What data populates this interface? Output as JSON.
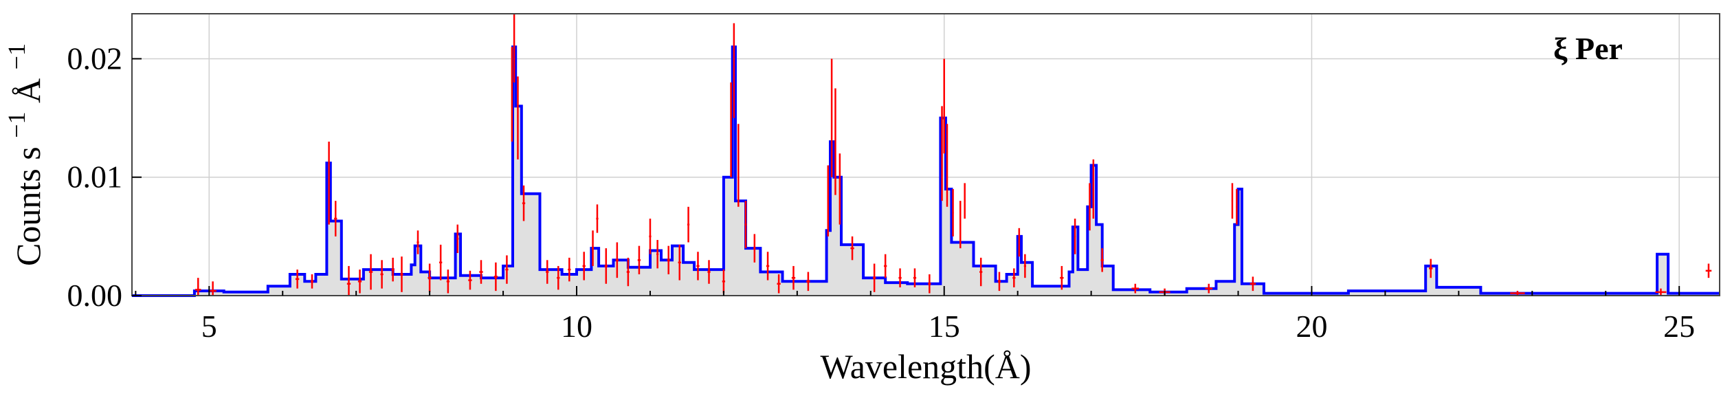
{
  "chart_data": {
    "type": "line",
    "title": "",
    "annotation": "ξ Per",
    "xlabel": "Wavelength(Å)",
    "ylabel_parts": {
      "base": "Counts s",
      "exp1": "−1",
      "mid": " Å",
      "exp2": "−1"
    },
    "xlim": [
      3.95,
      25.55
    ],
    "ylim": [
      0.0,
      0.0238
    ],
    "x_ticks": [
      5,
      10,
      15,
      20,
      25
    ],
    "x_tick_labels": [
      "5",
      "10",
      "15",
      "20",
      "25"
    ],
    "y_ticks": [
      0.0,
      0.01,
      0.02
    ],
    "y_tick_labels": [
      "0.00",
      "0.01",
      "0.02"
    ],
    "grid": true,
    "colors": {
      "model": "#0000ff",
      "data": "#ff0000",
      "fill": "#e0e0e0",
      "grid": "#d0d0d0"
    },
    "series": [
      {
        "name": "model",
        "style": "step",
        "points": [
          [
            3.95,
            0.0
          ],
          [
            4.8,
            0.0
          ],
          [
            4.8,
            0.0004
          ],
          [
            5.2,
            0.0004
          ],
          [
            5.2,
            0.0003
          ],
          [
            5.8,
            0.0003
          ],
          [
            5.8,
            0.0008
          ],
          [
            6.1,
            0.0008
          ],
          [
            6.1,
            0.0018
          ],
          [
            6.3,
            0.0018
          ],
          [
            6.3,
            0.0012
          ],
          [
            6.45,
            0.0012
          ],
          [
            6.45,
            0.0018
          ],
          [
            6.6,
            0.0018
          ],
          [
            6.6,
            0.0112
          ],
          [
            6.65,
            0.0112
          ],
          [
            6.65,
            0.0063
          ],
          [
            6.8,
            0.0063
          ],
          [
            6.8,
            0.0014
          ],
          [
            7.1,
            0.0014
          ],
          [
            7.1,
            0.0022
          ],
          [
            7.5,
            0.0022
          ],
          [
            7.5,
            0.0018
          ],
          [
            7.75,
            0.0018
          ],
          [
            7.75,
            0.0026
          ],
          [
            7.8,
            0.0026
          ],
          [
            7.8,
            0.0042
          ],
          [
            7.88,
            0.0042
          ],
          [
            7.88,
            0.002
          ],
          [
            8.0,
            0.002
          ],
          [
            8.0,
            0.0015
          ],
          [
            8.35,
            0.0015
          ],
          [
            8.35,
            0.0052
          ],
          [
            8.42,
            0.0052
          ],
          [
            8.42,
            0.0017
          ],
          [
            8.7,
            0.0017
          ],
          [
            8.7,
            0.0015
          ],
          [
            9.0,
            0.0015
          ],
          [
            9.0,
            0.0025
          ],
          [
            9.13,
            0.0025
          ],
          [
            9.13,
            0.021
          ],
          [
            9.17,
            0.021
          ],
          [
            9.17,
            0.016
          ],
          [
            9.25,
            0.016
          ],
          [
            9.25,
            0.0086
          ],
          [
            9.5,
            0.0086
          ],
          [
            9.5,
            0.0022
          ],
          [
            9.8,
            0.0022
          ],
          [
            9.8,
            0.0018
          ],
          [
            10.0,
            0.0018
          ],
          [
            10.0,
            0.0022
          ],
          [
            10.2,
            0.0022
          ],
          [
            10.2,
            0.004
          ],
          [
            10.3,
            0.004
          ],
          [
            10.3,
            0.0025
          ],
          [
            10.5,
            0.0025
          ],
          [
            10.5,
            0.003
          ],
          [
            10.7,
            0.003
          ],
          [
            10.7,
            0.0024
          ],
          [
            11.0,
            0.0024
          ],
          [
            11.0,
            0.0038
          ],
          [
            11.15,
            0.0038
          ],
          [
            11.15,
            0.003
          ],
          [
            11.3,
            0.003
          ],
          [
            11.3,
            0.0042
          ],
          [
            11.45,
            0.0042
          ],
          [
            11.45,
            0.0028
          ],
          [
            11.6,
            0.0028
          ],
          [
            11.6,
            0.0022
          ],
          [
            12.0,
            0.0022
          ],
          [
            12.0,
            0.01
          ],
          [
            12.12,
            0.01
          ],
          [
            12.12,
            0.021
          ],
          [
            12.16,
            0.021
          ],
          [
            12.16,
            0.008
          ],
          [
            12.3,
            0.008
          ],
          [
            12.3,
            0.004
          ],
          [
            12.5,
            0.004
          ],
          [
            12.5,
            0.002
          ],
          [
            12.8,
            0.002
          ],
          [
            12.8,
            0.0012
          ],
          [
            13.4,
            0.0012
          ],
          [
            13.4,
            0.0055
          ],
          [
            13.45,
            0.0055
          ],
          [
            13.45,
            0.013
          ],
          [
            13.5,
            0.013
          ],
          [
            13.5,
            0.01
          ],
          [
            13.6,
            0.01
          ],
          [
            13.6,
            0.0043
          ],
          [
            13.9,
            0.0043
          ],
          [
            13.9,
            0.0015
          ],
          [
            14.2,
            0.0015
          ],
          [
            14.2,
            0.0011
          ],
          [
            14.5,
            0.0011
          ],
          [
            14.5,
            0.001
          ],
          [
            14.95,
            0.001
          ],
          [
            14.95,
            0.015
          ],
          [
            15.02,
            0.015
          ],
          [
            15.02,
            0.009
          ],
          [
            15.1,
            0.009
          ],
          [
            15.1,
            0.0045
          ],
          [
            15.4,
            0.0045
          ],
          [
            15.4,
            0.0025
          ],
          [
            15.7,
            0.0025
          ],
          [
            15.7,
            0.0012
          ],
          [
            15.85,
            0.0012
          ],
          [
            15.85,
            0.0018
          ],
          [
            16.0,
            0.0018
          ],
          [
            16.0,
            0.005
          ],
          [
            16.05,
            0.005
          ],
          [
            16.05,
            0.0028
          ],
          [
            16.2,
            0.0028
          ],
          [
            16.2,
            0.0008
          ],
          [
            16.7,
            0.0008
          ],
          [
            16.7,
            0.002
          ],
          [
            16.75,
            0.002
          ],
          [
            16.75,
            0.0058
          ],
          [
            16.82,
            0.0058
          ],
          [
            16.82,
            0.0022
          ],
          [
            16.95,
            0.0022
          ],
          [
            16.95,
            0.0075
          ],
          [
            17.0,
            0.0075
          ],
          [
            17.0,
            0.011
          ],
          [
            17.07,
            0.011
          ],
          [
            17.07,
            0.006
          ],
          [
            17.15,
            0.006
          ],
          [
            17.15,
            0.0025
          ],
          [
            17.3,
            0.0025
          ],
          [
            17.3,
            0.0005
          ],
          [
            17.8,
            0.0005
          ],
          [
            17.8,
            0.0003
          ],
          [
            18.3,
            0.0003
          ],
          [
            18.3,
            0.0006
          ],
          [
            18.7,
            0.0006
          ],
          [
            18.7,
            0.0012
          ],
          [
            18.95,
            0.0012
          ],
          [
            18.95,
            0.006
          ],
          [
            19.0,
            0.006
          ],
          [
            19.0,
            0.009
          ],
          [
            19.05,
            0.009
          ],
          [
            19.05,
            0.001
          ],
          [
            19.35,
            0.001
          ],
          [
            19.35,
            0.0002
          ],
          [
            20.5,
            0.0002
          ],
          [
            20.5,
            0.0004
          ],
          [
            21.55,
            0.0004
          ],
          [
            21.55,
            0.0025
          ],
          [
            21.7,
            0.0025
          ],
          [
            21.7,
            0.0007
          ],
          [
            22.3,
            0.0007
          ],
          [
            22.3,
            0.0002
          ],
          [
            24.7,
            0.0002
          ],
          [
            24.7,
            0.0035
          ],
          [
            24.85,
            0.0035
          ],
          [
            24.85,
            0.0002
          ],
          [
            25.55,
            0.0002
          ]
        ]
      },
      {
        "name": "data",
        "style": "errorbar",
        "points": [
          [
            4.85,
            0.0005,
            0.001,
            0.08
          ],
          [
            5.05,
            0.0004,
            0.0008,
            0.1
          ],
          [
            6.2,
            0.0014,
            0.0008,
            0.05
          ],
          [
            6.4,
            0.0012,
            0.0006,
            0.04
          ],
          [
            6.63,
            0.0095,
            0.0035,
            0.02
          ],
          [
            6.72,
            0.0065,
            0.0015,
            0.04
          ],
          [
            6.9,
            0.001,
            0.0015,
            0.05
          ],
          [
            7.05,
            0.0012,
            0.001,
            0.05
          ],
          [
            7.2,
            0.002,
            0.0015,
            0.05
          ],
          [
            7.35,
            0.0018,
            0.0012,
            0.04
          ],
          [
            7.5,
            0.0022,
            0.001,
            0.04
          ],
          [
            7.62,
            0.0018,
            0.0015,
            0.04
          ],
          [
            7.84,
            0.0045,
            0.001,
            0.03
          ],
          [
            8.0,
            0.0015,
            0.0012,
            0.05
          ],
          [
            8.15,
            0.0028,
            0.0015,
            0.04
          ],
          [
            8.25,
            0.0012,
            0.001,
            0.04
          ],
          [
            8.38,
            0.0048,
            0.0012,
            0.03
          ],
          [
            8.55,
            0.0013,
            0.0008,
            0.05
          ],
          [
            8.7,
            0.002,
            0.001,
            0.05
          ],
          [
            8.9,
            0.0016,
            0.0012,
            0.05
          ],
          [
            9.05,
            0.0022,
            0.0012,
            0.04
          ],
          [
            9.12,
            0.017,
            0.004,
            0.015
          ],
          [
            9.15,
            0.021,
            0.003,
            0.015
          ],
          [
            9.2,
            0.015,
            0.0035,
            0.015
          ],
          [
            9.28,
            0.0078,
            0.0015,
            0.04
          ],
          [
            9.6,
            0.002,
            0.001,
            0.04
          ],
          [
            9.75,
            0.0015,
            0.001,
            0.04
          ],
          [
            9.9,
            0.0022,
            0.001,
            0.04
          ],
          [
            10.1,
            0.0025,
            0.0012,
            0.04
          ],
          [
            10.22,
            0.004,
            0.0015,
            0.03
          ],
          [
            10.28,
            0.0065,
            0.0012,
            0.03
          ],
          [
            10.4,
            0.0025,
            0.0015,
            0.04
          ],
          [
            10.55,
            0.003,
            0.0015,
            0.04
          ],
          [
            10.7,
            0.002,
            0.0012,
            0.04
          ],
          [
            10.85,
            0.003,
            0.0012,
            0.04
          ],
          [
            11.0,
            0.005,
            0.0015,
            0.03
          ],
          [
            11.1,
            0.0035,
            0.0012,
            0.03
          ],
          [
            11.25,
            0.003,
            0.0012,
            0.04
          ],
          [
            11.4,
            0.0028,
            0.0015,
            0.04
          ],
          [
            11.52,
            0.006,
            0.0015,
            0.03
          ],
          [
            11.65,
            0.0025,
            0.0012,
            0.04
          ],
          [
            11.8,
            0.002,
            0.001,
            0.04
          ],
          [
            12.0,
            0.0012,
            0.001,
            0.04
          ],
          [
            12.1,
            0.014,
            0.004,
            0.015
          ],
          [
            12.14,
            0.019,
            0.004,
            0.015
          ],
          [
            12.2,
            0.011,
            0.0035,
            0.015
          ],
          [
            12.3,
            0.006,
            0.002,
            0.03
          ],
          [
            12.42,
            0.004,
            0.0012,
            0.03
          ],
          [
            12.6,
            0.0025,
            0.0012,
            0.04
          ],
          [
            12.75,
            0.001,
            0.0008,
            0.05
          ],
          [
            12.95,
            0.0015,
            0.001,
            0.05
          ],
          [
            13.15,
            0.0012,
            0.0008,
            0.05
          ],
          [
            13.42,
            0.008,
            0.003,
            0.015
          ],
          [
            13.47,
            0.015,
            0.005,
            0.015
          ],
          [
            13.52,
            0.013,
            0.0045,
            0.015
          ],
          [
            13.58,
            0.009,
            0.003,
            0.02
          ],
          [
            13.75,
            0.004,
            0.001,
            0.05
          ],
          [
            14.05,
            0.0015,
            0.0012,
            0.04
          ],
          [
            14.2,
            0.0025,
            0.001,
            0.04
          ],
          [
            14.4,
            0.0015,
            0.0008,
            0.04
          ],
          [
            14.6,
            0.0015,
            0.0008,
            0.04
          ],
          [
            14.8,
            0.001,
            0.0008,
            0.04
          ],
          [
            14.97,
            0.012,
            0.004,
            0.015
          ],
          [
            15.0,
            0.016,
            0.004,
            0.015
          ],
          [
            15.04,
            0.011,
            0.0035,
            0.015
          ],
          [
            15.12,
            0.007,
            0.002,
            0.02
          ],
          [
            15.22,
            0.006,
            0.002,
            0.02
          ],
          [
            15.28,
            0.008,
            0.0015,
            0.02
          ],
          [
            15.5,
            0.002,
            0.0012,
            0.04
          ],
          [
            15.75,
            0.0012,
            0.0008,
            0.04
          ],
          [
            15.95,
            0.0015,
            0.0008,
            0.04
          ],
          [
            16.02,
            0.0045,
            0.0012,
            0.02
          ],
          [
            16.1,
            0.0025,
            0.001,
            0.03
          ],
          [
            16.6,
            0.0015,
            0.001,
            0.05
          ],
          [
            16.78,
            0.005,
            0.0015,
            0.02
          ],
          [
            16.98,
            0.0075,
            0.002,
            0.02
          ],
          [
            17.03,
            0.009,
            0.0025,
            0.02
          ],
          [
            17.15,
            0.003,
            0.001,
            0.04
          ],
          [
            17.6,
            0.0006,
            0.0004,
            0.1
          ],
          [
            18.0,
            0.0003,
            0.0003,
            0.15
          ],
          [
            18.6,
            0.0006,
            0.0004,
            0.1
          ],
          [
            18.92,
            0.008,
            0.0015,
            0.02
          ],
          [
            18.98,
            0.0075,
            0.0015,
            0.02
          ],
          [
            19.2,
            0.001,
            0.0006,
            0.08
          ],
          [
            21.62,
            0.0023,
            0.0008,
            0.05
          ],
          [
            22.8,
            0.0002,
            0.0002,
            0.2
          ],
          [
            24.75,
            0.0003,
            0.0003,
            0.15
          ],
          [
            25.4,
            0.0021,
            0.0006,
            0.08
          ]
        ]
      }
    ]
  }
}
